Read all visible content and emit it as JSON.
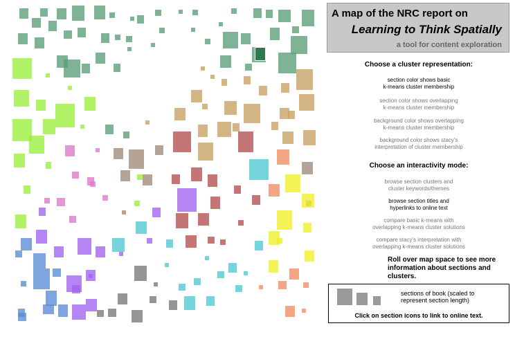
{
  "title": {
    "line1": "A map of the NRC report on",
    "line2": "Learning to Think Spatially",
    "subtitle": "a tool for content exploration"
  },
  "cluster": {
    "header": "Choose a cluster representation:",
    "options": [
      {
        "line1": "section color shows basic",
        "line2": "k-means cluster membership",
        "selected": true
      },
      {
        "line1": "section color shows overlapping",
        "line2": "k-means cluster membership",
        "selected": false
      },
      {
        "line1": "background color shows overlapping",
        "line2": "k-means cluster membership",
        "selected": false
      },
      {
        "line1": "background color shows stacy's",
        "line2": "interpretation of cluster membership",
        "selected": false
      }
    ]
  },
  "interactivity": {
    "header": "Choose an interactivity mode:",
    "options": [
      {
        "line1": "browse section clusters and",
        "line2": "cluster keywords/themes",
        "selected": false
      },
      {
        "line1": "browse section titles and",
        "line2": "hyperlinks to online text",
        "selected": true
      },
      {
        "line1": "compare basic k-means with",
        "line2": "overlapping k-means cluster solutions",
        "selected": false
      },
      {
        "line1": "compare stacy's interpretation with",
        "line2": "overlapping k-means cluster solutions",
        "selected": false
      }
    ]
  },
  "rollover": "Roll over map space to see more information about sections and clusters.",
  "legend": {
    "line1": "sections of book (scaled to",
    "line2": "represent section length)",
    "click": "Click on section icons to link to online text."
  },
  "colors": {
    "green": "#5a9e78",
    "lime": "#9af03c",
    "tan": "#c8a064",
    "brown": "#a08a78",
    "red": "#b45050",
    "orange": "#f08c64",
    "yellow": "#f0f028",
    "pink": "#dc78c8",
    "purple": "#a064f0",
    "cyan": "#50c8d2",
    "blue": "#5a8cd2",
    "gray": "#787878"
  }
}
